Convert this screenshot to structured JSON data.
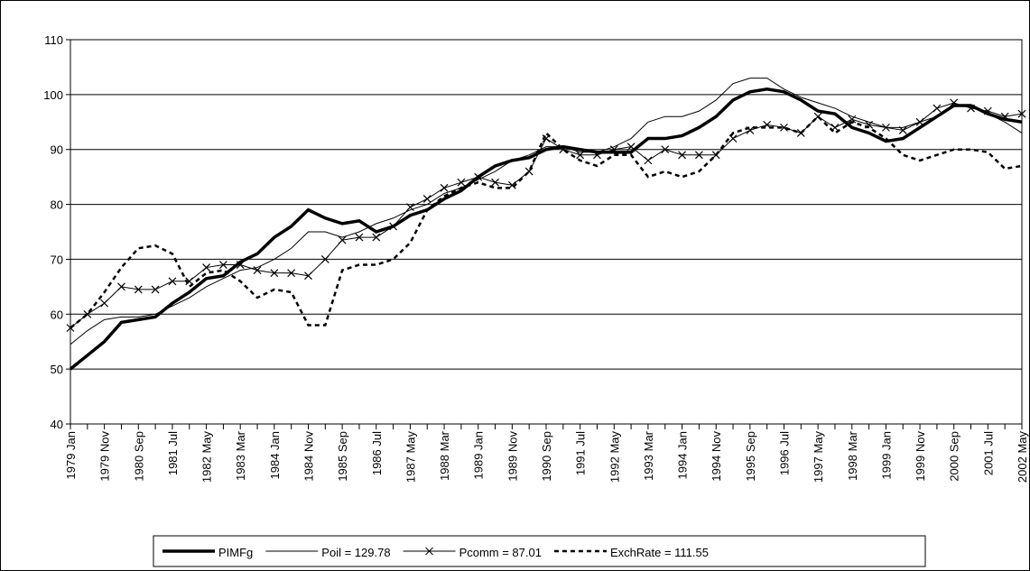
{
  "chart_data": {
    "type": "line",
    "categories": [
      "1979 Jan",
      null,
      "1979 Nov",
      null,
      "1980 Sep",
      null,
      "1981 Jul",
      null,
      "1982 May",
      null,
      "1983 Mar",
      null,
      "1984 Jan",
      null,
      "1984 Nov",
      null,
      "1985 Sep",
      null,
      "1986 Jul",
      null,
      "1987 May",
      null,
      "1988 Mar",
      null,
      "1989 Jan",
      null,
      "1989 Nov",
      null,
      "1990 Sep",
      null,
      "1991 Jul",
      null,
      "1992 May",
      null,
      "1993 Mar",
      null,
      "1994 Jan",
      null,
      "1994 Nov",
      null,
      "1995 Sep",
      null,
      "1996 Jul",
      null,
      "1997 May",
      null,
      "1998 Mar",
      null,
      "1999 Jan",
      null,
      "1999 Nov",
      null,
      "2000 Sep",
      null,
      "2001 Jul",
      null,
      "2002 May"
    ],
    "series": [
      {
        "name": "PIMFg",
        "color": "#000000",
        "width": 3.5,
        "style": "solid",
        "values": [
          50,
          52.5,
          55,
          58.5,
          59,
          59.5,
          62,
          64,
          66.5,
          67,
          69.5,
          71,
          74,
          76,
          79,
          77.5,
          76.5,
          77,
          75,
          76,
          78,
          79,
          81,
          82.5,
          85,
          87,
          88,
          88.5,
          90,
          90.5,
          90,
          89.5,
          89.5,
          89.5,
          92,
          92,
          92.5,
          94,
          96,
          99,
          100.5,
          101,
          100.5,
          99,
          97,
          96.5,
          94,
          93,
          91.5,
          92,
          94,
          96,
          98,
          98,
          96.5,
          95.5,
          95
        ]
      },
      {
        "name": "Poil = 129.78",
        "color": "#000000",
        "width": 1,
        "style": "solid",
        "values": [
          54.5,
          57,
          59,
          59.5,
          59.5,
          60,
          61.5,
          63,
          65,
          66.5,
          68,
          68.5,
          70,
          72,
          75,
          75,
          74,
          75,
          76.5,
          77.5,
          79,
          80,
          82,
          83,
          84.5,
          86,
          88,
          89,
          90.5,
          90.5,
          89.5,
          89.5,
          90.5,
          92,
          95,
          96,
          96,
          97,
          99,
          102,
          103,
          103,
          101,
          99.5,
          98.5,
          97.5,
          96,
          95,
          94,
          94,
          95,
          96,
          98,
          98,
          96.5,
          95,
          93
        ]
      },
      {
        "name": "Pcomm = 87.01",
        "color": "#000000",
        "width": 1,
        "style": "cross",
        "values": [
          57.5,
          60,
          62,
          65,
          64.5,
          64.5,
          66,
          66,
          68.5,
          69,
          69,
          68,
          67.5,
          67.5,
          67,
          70,
          73.5,
          74,
          74,
          76,
          79.5,
          81,
          83,
          84,
          85,
          84,
          83.5,
          86,
          92,
          90,
          89,
          89,
          90,
          90.5,
          88,
          90,
          89,
          89,
          89,
          92,
          93.5,
          94.5,
          94,
          93,
          96,
          94,
          95.5,
          94.5,
          94,
          93.5,
          95,
          97.5,
          98.5,
          97.5,
          97,
          96,
          96.5
        ]
      },
      {
        "name": "ExchRate = 111.55",
        "color": "#000000",
        "width": 2.5,
        "style": "dashed",
        "values": [
          57.5,
          60,
          64,
          68.5,
          72,
          72.5,
          71,
          65,
          67.5,
          68,
          66,
          63,
          64.5,
          64,
          58,
          58,
          68,
          69,
          69,
          70,
          73,
          79,
          81.5,
          83,
          84,
          83,
          83,
          86,
          93,
          90,
          88,
          87,
          89,
          89,
          85,
          86,
          85,
          86,
          89,
          93,
          94,
          94,
          94,
          93,
          96,
          93,
          95,
          94,
          92,
          89,
          88,
          89,
          90,
          90,
          89.5,
          86.5,
          87
        ]
      }
    ],
    "ylim": [
      40,
      110
    ],
    "yticks": [
      40,
      50,
      60,
      70,
      80,
      90,
      100,
      110
    ],
    "grid": true,
    "legend": "bottom"
  }
}
